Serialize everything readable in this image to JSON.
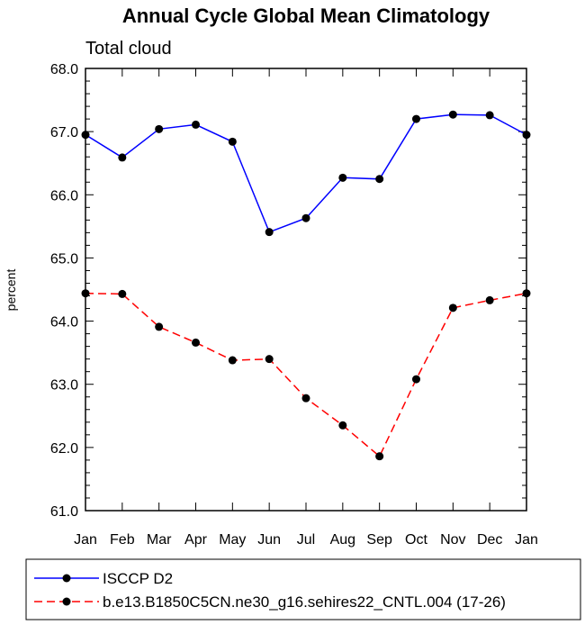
{
  "chart_data": {
    "type": "line",
    "title": "Annual Cycle Global Mean Climatology",
    "subtitle": "Total cloud",
    "xlabel": "",
    "ylabel": "percent",
    "categories": [
      "Jan",
      "Feb",
      "Mar",
      "Apr",
      "May",
      "Jun",
      "Jul",
      "Aug",
      "Sep",
      "Oct",
      "Nov",
      "Dec",
      "Jan"
    ],
    "ylim": [
      61.0,
      68.0
    ],
    "yticks": [
      "61.0",
      "62.0",
      "63.0",
      "64.0",
      "65.0",
      "66.0",
      "67.0",
      "68.0"
    ],
    "grid": false,
    "legend_position": "bottom",
    "series": [
      {
        "name": "ISCCP D2",
        "color": "#0000ff",
        "dash": "solid",
        "marker": "circle",
        "values": [
          66.95,
          66.59,
          67.04,
          67.11,
          66.84,
          65.41,
          65.63,
          66.27,
          66.25,
          67.2,
          67.27,
          67.26,
          66.95
        ]
      },
      {
        "name": "b.e13.B1850C5CN.ne30_g16.sehires22_CNTL.004 (17-26)",
        "color": "#ff0000",
        "dash": "dashed",
        "marker": "circle",
        "values": [
          64.44,
          64.43,
          63.91,
          63.66,
          63.38,
          63.4,
          62.78,
          62.35,
          61.86,
          63.08,
          64.21,
          64.33,
          64.44
        ]
      }
    ]
  }
}
